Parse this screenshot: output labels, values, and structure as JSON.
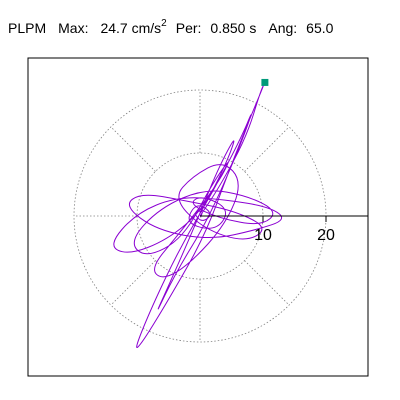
{
  "header": {
    "station": "PLPM",
    "max_label": "Max:",
    "max_value": "24.7 cm/s",
    "max_exp": "2",
    "per_label": "Per:",
    "per_value": "0.850 s",
    "ang_label": "Ang:",
    "ang_value": "65.0"
  },
  "chart_data": {
    "type": "line",
    "title": "PLPM Max: 24.7 cm/s2 Per: 0.850 s Ang: 65.0",
    "xlabel": "",
    "ylabel": "",
    "radial_ticks": [
      10,
      20
    ],
    "radial_rings": [
      10,
      20
    ],
    "spokes_deg": [
      0,
      45,
      90,
      135,
      180,
      225,
      270,
      315
    ],
    "range": [
      -21,
      26
    ],
    "grid": true,
    "colors": {
      "trace": "#8b00d2",
      "endpoint": "#009a7a",
      "axis": "#000000",
      "grid": "#808080"
    },
    "endpoint": {
      "x": 10.3,
      "y": 21.2
    },
    "series": [
      {
        "values": [
          [
            0,
            0
          ],
          [
            3.2,
            4.8
          ],
          [
            7.4,
            12.6
          ],
          [
            9.6,
            19.8
          ],
          [
            10.3,
            21.2
          ],
          [
            8.1,
            15.9
          ],
          [
            4.6,
            7.2
          ],
          [
            0.8,
            -3.1
          ],
          [
            -4.7,
            -12.8
          ],
          [
            -9.2,
            -20.2
          ],
          [
            -10.5,
            -21.4
          ],
          [
            -7.6,
            -14.3
          ],
          [
            -3.1,
            -4.9
          ],
          [
            1.9,
            3.6
          ],
          [
            6.4,
            12.1
          ],
          [
            8.7,
            17.6
          ],
          [
            6.1,
            10.4
          ],
          [
            1.2,
            -0.7
          ],
          [
            -3.9,
            -9.1
          ],
          [
            -7.3,
            -16.2
          ],
          [
            -5.1,
            -11.3
          ],
          [
            -0.9,
            -1.8
          ],
          [
            2.8,
            7.4
          ],
          [
            5.9,
            13.2
          ],
          [
            4.3,
            8.6
          ],
          [
            0.4,
            0.9
          ],
          [
            -5.2,
            -3.8
          ],
          [
            -11.4,
            -6.2
          ],
          [
            -14.6,
            -4.7
          ],
          [
            -10.2,
            0.4
          ],
          [
            -3.6,
            3.1
          ],
          [
            4.1,
            2.6
          ],
          [
            11.2,
            1.4
          ],
          [
            13.8,
            -0.6
          ],
          [
            8.9,
            -2.2
          ],
          [
            1.7,
            -3.8
          ],
          [
            -6.8,
            -2.3
          ],
          [
            -12.1,
            1.6
          ],
          [
            -9.4,
            3.7
          ],
          [
            -2.2,
            2.4
          ],
          [
            5.6,
            0.8
          ],
          [
            10.9,
            -1.9
          ],
          [
            7.3,
            -4.2
          ],
          [
            0.6,
            -2.1
          ],
          [
            -4.3,
            2.8
          ],
          [
            -1.2,
            6.3
          ],
          [
            3.6,
            8.9
          ],
          [
            6.8,
            5.4
          ],
          [
            4.1,
            -1.3
          ],
          [
            -1.6,
            -7.6
          ],
          [
            -5.9,
            -10.2
          ],
          [
            -7.9,
            -8.3
          ],
          [
            -3.4,
            -2.9
          ],
          [
            2.5,
            4.6
          ],
          [
            5.2,
            9.7
          ],
          [
            1.9,
            5.1
          ],
          [
            -2.7,
            -3.6
          ],
          [
            -8.6,
            -6.7
          ],
          [
            -11.3,
            -4.1
          ],
          [
            -6.4,
            1.3
          ],
          [
            0.9,
            4.4
          ],
          [
            7.6,
            3.2
          ],
          [
            12.4,
            0.7
          ],
          [
            9.8,
            -1.6
          ],
          [
            3.1,
            -0.4
          ],
          [
            -1.8,
            1.9
          ],
          [
            0.2,
            3.3
          ],
          [
            4.8,
            1.1
          ],
          [
            2.6,
            -2.4
          ],
          [
            -2.4,
            -1.2
          ],
          [
            -0.6,
            2.2
          ],
          [
            2.1,
            0.4
          ],
          [
            0.3,
            -1.1
          ],
          [
            -1.1,
            0.6
          ],
          [
            0.5,
            0.9
          ],
          [
            0.1,
            -0.2
          ]
        ]
      }
    ]
  }
}
